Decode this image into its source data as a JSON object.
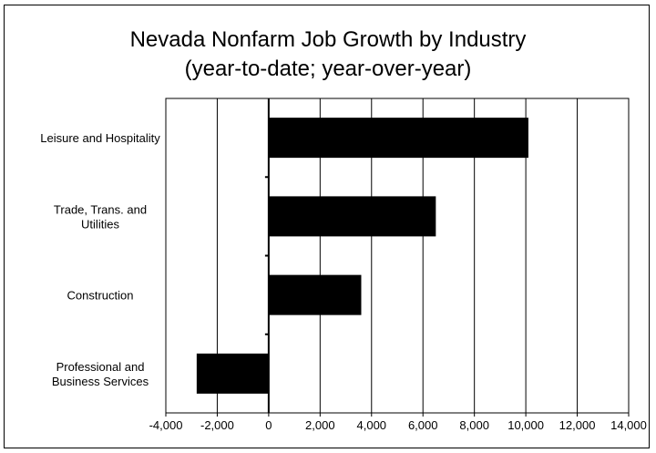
{
  "chart_data": {
    "type": "bar",
    "orientation": "horizontal",
    "title": "Nevada Nonfarm Job Growth by Industry",
    "subtitle": "(year-to-date; year-over-year)",
    "categories": [
      "Leisure and Hospitality",
      "Trade, Trans. and Utilities",
      "Construction",
      "Professional and Business Services"
    ],
    "category_lines": [
      [
        "Leisure and Hospitality"
      ],
      [
        "Trade, Trans. and",
        "Utilities"
      ],
      [
        "Construction"
      ],
      [
        "Professional and",
        "Business Services"
      ]
    ],
    "values": [
      10100,
      6500,
      3600,
      -2800
    ],
    "xlim": [
      -4000,
      14000
    ],
    "xticks": [
      -4000,
      -2000,
      0,
      2000,
      4000,
      6000,
      8000,
      10000,
      12000,
      14000
    ],
    "xtick_labels": [
      "-4,000",
      "-2,000",
      "0",
      "2,000",
      "4,000",
      "6,000",
      "8,000",
      "10,000",
      "12,000",
      "14,000"
    ],
    "xlabel": "",
    "ylabel": "",
    "grid": true,
    "bar_color": "#000000"
  }
}
